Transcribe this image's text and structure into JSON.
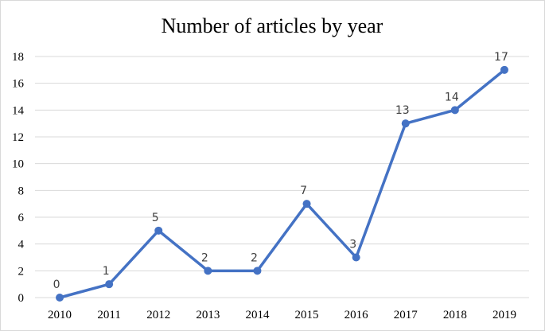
{
  "chart_data": {
    "type": "line",
    "title": "Number of articles by year",
    "xlabel": "",
    "ylabel": "",
    "categories": [
      "2010",
      "2011",
      "2012",
      "2013",
      "2014",
      "2015",
      "2016",
      "2017",
      "2018",
      "2019"
    ],
    "series": [
      {
        "values": [
          0,
          1,
          5,
          2,
          2,
          7,
          3,
          13,
          14,
          17
        ]
      }
    ],
    "ylim": [
      0,
      18
    ],
    "yticks": [
      "0",
      "2",
      "4",
      "6",
      "8",
      "10",
      "12",
      "14",
      "16",
      "18"
    ],
    "data_labels": [
      "0",
      "1",
      "5",
      "2",
      "2",
      "7",
      "3",
      "13",
      "14",
      "17"
    ],
    "grid": true,
    "legend": "none",
    "colors": {
      "line": "#4472C4",
      "grid": "#D9D9D9"
    }
  }
}
